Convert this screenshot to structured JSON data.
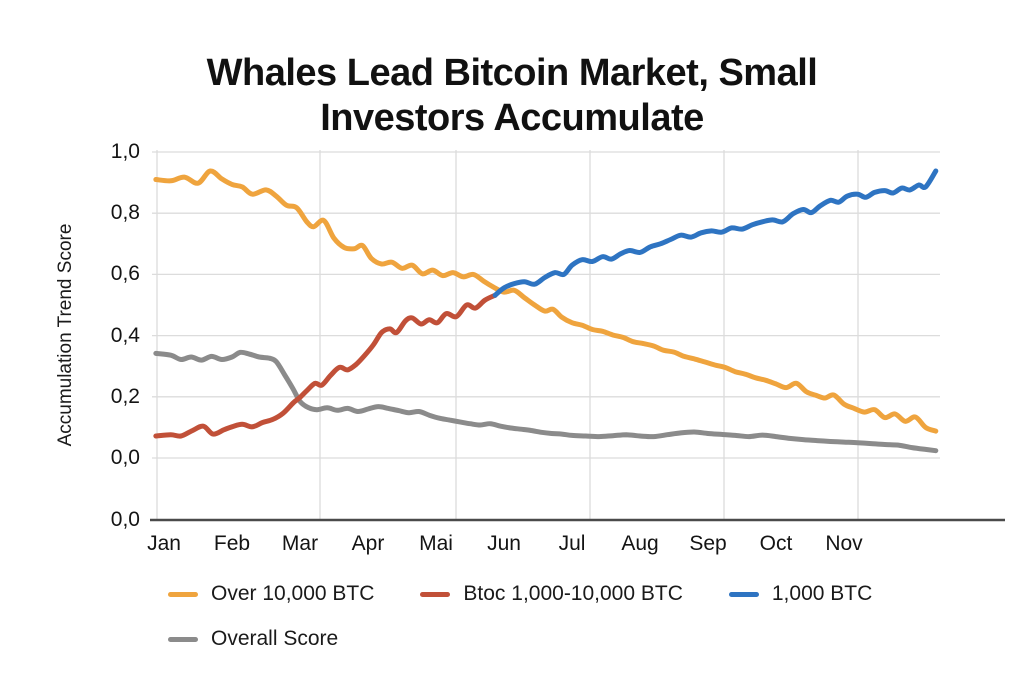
{
  "title": {
    "line1": "Whales Lead Bitcoin Market, Small",
    "line2": "Investors Accumulate"
  },
  "chart_data": {
    "type": "line",
    "title": "Whales Lead Bitcoin Market, Small Investors Accumulate",
    "xlabel": "",
    "ylabel": "Accumulation Trend Score",
    "x_unit": "months (0 = Jan)",
    "x_tick_labels": [
      "Jan",
      "Feb",
      "Mar",
      "Apr",
      "Mai",
      "Jun",
      "Jul",
      "Aug",
      "Sep",
      "Oct",
      "Nov"
    ],
    "y_tick_labels": [
      "1,0",
      "0,8",
      "0,6",
      "0,4",
      "0,2",
      "0,0",
      "0,0"
    ],
    "ylim": [
      0,
      1
    ],
    "grid": true,
    "legend_position": "bottom",
    "colors": {
      "grid": "#dcdcdc",
      "axis": "#4a4a4a",
      "text": "#141414"
    },
    "series": [
      {
        "name": "Over 10,000 BTC",
        "color": "#efa43e",
        "points": [
          [
            -0.12,
            0.91
          ],
          [
            0.1,
            0.906
          ],
          [
            0.3,
            0.918
          ],
          [
            0.5,
            0.898
          ],
          [
            0.68,
            0.938
          ],
          [
            0.85,
            0.912
          ],
          [
            1.0,
            0.894
          ],
          [
            1.15,
            0.886
          ],
          [
            1.3,
            0.862
          ],
          [
            1.5,
            0.876
          ],
          [
            1.65,
            0.856
          ],
          [
            1.8,
            0.826
          ],
          [
            1.95,
            0.818
          ],
          [
            2.1,
            0.772
          ],
          [
            2.2,
            0.756
          ],
          [
            2.35,
            0.776
          ],
          [
            2.5,
            0.718
          ],
          [
            2.65,
            0.688
          ],
          [
            2.8,
            0.684
          ],
          [
            2.92,
            0.694
          ],
          [
            3.05,
            0.652
          ],
          [
            3.2,
            0.634
          ],
          [
            3.35,
            0.64
          ],
          [
            3.5,
            0.62
          ],
          [
            3.65,
            0.63
          ],
          [
            3.8,
            0.602
          ],
          [
            3.95,
            0.614
          ],
          [
            4.1,
            0.596
          ],
          [
            4.25,
            0.606
          ],
          [
            4.4,
            0.592
          ],
          [
            4.55,
            0.6
          ],
          [
            4.7,
            0.578
          ],
          [
            4.85,
            0.558
          ],
          [
            5.0,
            0.542
          ],
          [
            5.15,
            0.548
          ],
          [
            5.3,
            0.524
          ],
          [
            5.45,
            0.5
          ],
          [
            5.6,
            0.48
          ],
          [
            5.72,
            0.486
          ],
          [
            5.85,
            0.46
          ],
          [
            6.0,
            0.442
          ],
          [
            6.15,
            0.434
          ],
          [
            6.3,
            0.42
          ],
          [
            6.45,
            0.414
          ],
          [
            6.6,
            0.402
          ],
          [
            6.75,
            0.394
          ],
          [
            6.9,
            0.38
          ],
          [
            7.05,
            0.374
          ],
          [
            7.2,
            0.366
          ],
          [
            7.35,
            0.352
          ],
          [
            7.5,
            0.346
          ],
          [
            7.65,
            0.332
          ],
          [
            7.8,
            0.324
          ],
          [
            7.95,
            0.314
          ],
          [
            8.1,
            0.304
          ],
          [
            8.25,
            0.296
          ],
          [
            8.4,
            0.282
          ],
          [
            8.55,
            0.274
          ],
          [
            8.7,
            0.262
          ],
          [
            8.85,
            0.254
          ],
          [
            9.0,
            0.242
          ],
          [
            9.15,
            0.23
          ],
          [
            9.3,
            0.244
          ],
          [
            9.45,
            0.216
          ],
          [
            9.6,
            0.204
          ],
          [
            9.72,
            0.196
          ],
          [
            9.85,
            0.206
          ],
          [
            10.0,
            0.176
          ],
          [
            10.15,
            0.162
          ],
          [
            10.3,
            0.15
          ],
          [
            10.45,
            0.158
          ],
          [
            10.6,
            0.132
          ],
          [
            10.75,
            0.144
          ],
          [
            10.9,
            0.12
          ],
          [
            11.05,
            0.134
          ],
          [
            11.2,
            0.1
          ],
          [
            11.35,
            0.088
          ]
        ]
      },
      {
        "name": "Btoc 1,000-10,000 BTC",
        "color": "#c15038",
        "points": [
          [
            -0.12,
            0.072
          ],
          [
            0.1,
            0.076
          ],
          [
            0.25,
            0.072
          ],
          [
            0.42,
            0.09
          ],
          [
            0.58,
            0.104
          ],
          [
            0.72,
            0.078
          ],
          [
            0.88,
            0.092
          ],
          [
            1.0,
            0.102
          ],
          [
            1.15,
            0.11
          ],
          [
            1.3,
            0.102
          ],
          [
            1.45,
            0.116
          ],
          [
            1.6,
            0.126
          ],
          [
            1.75,
            0.146
          ],
          [
            1.9,
            0.18
          ],
          [
            2.0,
            0.198
          ],
          [
            2.1,
            0.22
          ],
          [
            2.22,
            0.244
          ],
          [
            2.32,
            0.238
          ],
          [
            2.45,
            0.27
          ],
          [
            2.58,
            0.296
          ],
          [
            2.7,
            0.288
          ],
          [
            2.82,
            0.305
          ],
          [
            2.95,
            0.335
          ],
          [
            3.08,
            0.37
          ],
          [
            3.2,
            0.41
          ],
          [
            3.32,
            0.422
          ],
          [
            3.42,
            0.41
          ],
          [
            3.55,
            0.448
          ],
          [
            3.65,
            0.458
          ],
          [
            3.78,
            0.438
          ],
          [
            3.9,
            0.452
          ],
          [
            4.02,
            0.442
          ],
          [
            4.15,
            0.472
          ],
          [
            4.3,
            0.462
          ],
          [
            4.45,
            0.5
          ],
          [
            4.58,
            0.49
          ],
          [
            4.72,
            0.516
          ],
          [
            4.87,
            0.532
          ]
        ]
      },
      {
        "name": "1,000 BTC",
        "color": "#2e74c2",
        "points": [
          [
            4.87,
            0.532
          ],
          [
            5.0,
            0.556
          ],
          [
            5.15,
            0.57
          ],
          [
            5.3,
            0.576
          ],
          [
            5.45,
            0.568
          ],
          [
            5.6,
            0.59
          ],
          [
            5.75,
            0.606
          ],
          [
            5.88,
            0.6
          ],
          [
            6.0,
            0.63
          ],
          [
            6.15,
            0.648
          ],
          [
            6.3,
            0.642
          ],
          [
            6.45,
            0.658
          ],
          [
            6.58,
            0.65
          ],
          [
            6.72,
            0.668
          ],
          [
            6.85,
            0.678
          ],
          [
            7.0,
            0.672
          ],
          [
            7.15,
            0.69
          ],
          [
            7.3,
            0.7
          ],
          [
            7.45,
            0.714
          ],
          [
            7.6,
            0.728
          ],
          [
            7.75,
            0.722
          ],
          [
            7.9,
            0.736
          ],
          [
            8.05,
            0.742
          ],
          [
            8.2,
            0.738
          ],
          [
            8.35,
            0.752
          ],
          [
            8.5,
            0.748
          ],
          [
            8.65,
            0.762
          ],
          [
            8.8,
            0.772
          ],
          [
            8.95,
            0.778
          ],
          [
            9.1,
            0.772
          ],
          [
            9.25,
            0.798
          ],
          [
            9.4,
            0.812
          ],
          [
            9.52,
            0.802
          ],
          [
            9.65,
            0.824
          ],
          [
            9.8,
            0.842
          ],
          [
            9.92,
            0.836
          ],
          [
            10.05,
            0.856
          ],
          [
            10.2,
            0.862
          ],
          [
            10.32,
            0.852
          ],
          [
            10.45,
            0.868
          ],
          [
            10.6,
            0.874
          ],
          [
            10.72,
            0.866
          ],
          [
            10.85,
            0.882
          ],
          [
            10.97,
            0.876
          ],
          [
            11.1,
            0.892
          ],
          [
            11.2,
            0.886
          ],
          [
            11.35,
            0.938
          ]
        ]
      },
      {
        "name": "Overall Score",
        "color": "#8b8b8b",
        "points": [
          [
            -0.12,
            0.342
          ],
          [
            0.1,
            0.336
          ],
          [
            0.25,
            0.322
          ],
          [
            0.4,
            0.33
          ],
          [
            0.55,
            0.32
          ],
          [
            0.7,
            0.332
          ],
          [
            0.85,
            0.322
          ],
          [
            1.0,
            0.33
          ],
          [
            1.12,
            0.345
          ],
          [
            1.25,
            0.34
          ],
          [
            1.4,
            0.33
          ],
          [
            1.55,
            0.326
          ],
          [
            1.65,
            0.315
          ],
          [
            1.78,
            0.27
          ],
          [
            1.9,
            0.225
          ],
          [
            2.0,
            0.185
          ],
          [
            2.12,
            0.165
          ],
          [
            2.25,
            0.158
          ],
          [
            2.4,
            0.164
          ],
          [
            2.55,
            0.156
          ],
          [
            2.7,
            0.162
          ],
          [
            2.85,
            0.152
          ],
          [
            3.0,
            0.16
          ],
          [
            3.15,
            0.168
          ],
          [
            3.3,
            0.162
          ],
          [
            3.45,
            0.155
          ],
          [
            3.6,
            0.148
          ],
          [
            3.75,
            0.152
          ],
          [
            3.9,
            0.14
          ],
          [
            4.05,
            0.13
          ],
          [
            4.2,
            0.124
          ],
          [
            4.35,
            0.118
          ],
          [
            4.5,
            0.112
          ],
          [
            4.65,
            0.108
          ],
          [
            4.8,
            0.112
          ],
          [
            4.95,
            0.104
          ],
          [
            5.1,
            0.098
          ],
          [
            5.25,
            0.094
          ],
          [
            5.4,
            0.09
          ],
          [
            5.55,
            0.084
          ],
          [
            5.7,
            0.08
          ],
          [
            5.85,
            0.078
          ],
          [
            6.0,
            0.074
          ],
          [
            6.2,
            0.072
          ],
          [
            6.4,
            0.07
          ],
          [
            6.6,
            0.073
          ],
          [
            6.8,
            0.076
          ],
          [
            7.0,
            0.072
          ],
          [
            7.2,
            0.07
          ],
          [
            7.4,
            0.076
          ],
          [
            7.6,
            0.082
          ],
          [
            7.8,
            0.085
          ],
          [
            8.0,
            0.08
          ],
          [
            8.2,
            0.077
          ],
          [
            8.4,
            0.074
          ],
          [
            8.6,
            0.07
          ],
          [
            8.8,
            0.075
          ],
          [
            9.0,
            0.07
          ],
          [
            9.2,
            0.064
          ],
          [
            9.4,
            0.06
          ],
          [
            9.6,
            0.057
          ],
          [
            9.8,
            0.054
          ],
          [
            10.0,
            0.052
          ],
          [
            10.2,
            0.05
          ],
          [
            10.4,
            0.047
          ],
          [
            10.6,
            0.044
          ],
          [
            10.8,
            0.042
          ],
          [
            11.0,
            0.034
          ],
          [
            11.2,
            0.028
          ],
          [
            11.35,
            0.024
          ]
        ]
      }
    ]
  }
}
